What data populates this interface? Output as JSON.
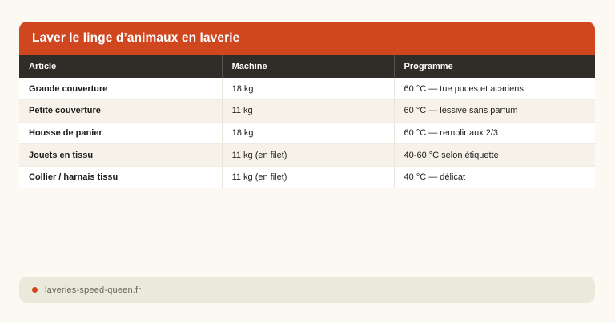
{
  "card": {
    "title": "Laver le linge d’animaux en laverie"
  },
  "table": {
    "columns": [
      "Article",
      "Machine",
      "Programme"
    ],
    "rows": [
      {
        "article": "Grande couverture",
        "machine": "18 kg",
        "programme": "60 °C — tue puces et acariens"
      },
      {
        "article": "Petite couverture",
        "machine": "11 kg",
        "programme": "60 °C — lessive sans parfum"
      },
      {
        "article": "Housse de panier",
        "machine": "18 kg",
        "programme": "60 °C — remplir aux 2/3"
      },
      {
        "article": "Jouets en tissu",
        "machine": "11 kg (en filet)",
        "programme": "40-60 °C selon étiquette"
      },
      {
        "article": "Collier / harnais tissu",
        "machine": "11 kg (en filet)",
        "programme": "40 °C — délicat"
      }
    ]
  },
  "footer": {
    "source_label": "laveries-speed-queen.fr"
  },
  "colors": {
    "accent_orange": "#d0461f",
    "header_dark": "#302c28",
    "zebra_row": "#f6f2e9",
    "page_background": "#fcf9f3",
    "footer_bar": "#ebe8dc"
  }
}
